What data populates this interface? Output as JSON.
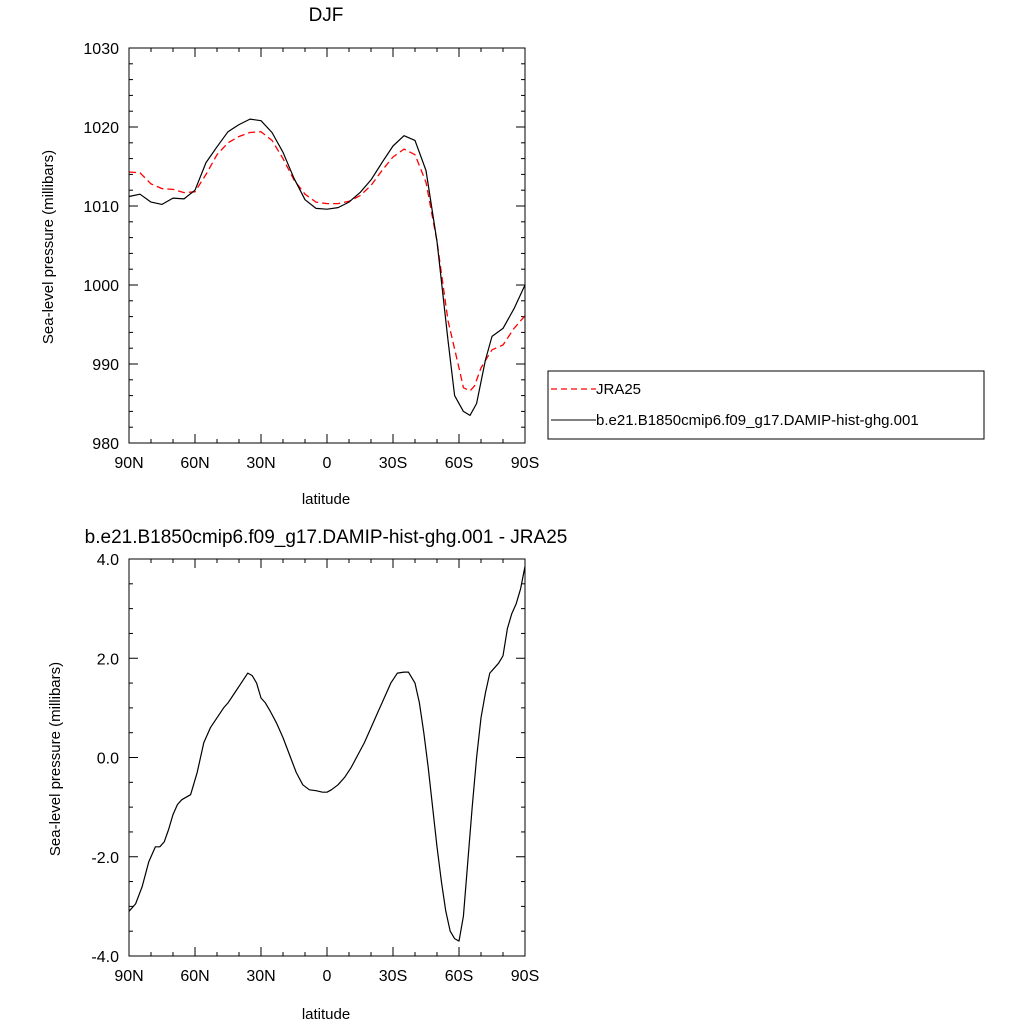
{
  "charts": [
    {
      "title": "DJF",
      "xlabel": "latitude",
      "ylabel": "Sea-level pressure (millibars)",
      "x_tick_labels": [
        "90N",
        "60N",
        "30N",
        "0",
        "30S",
        "60S",
        "90S"
      ],
      "y_tick_labels": [
        "980",
        "990",
        "1000",
        "1010",
        "1020",
        "1030"
      ],
      "legend": [
        "JRA25",
        "b.e21.B1850cmip6.f09_g17.DAMIP-hist-ghg.001"
      ]
    },
    {
      "title": "b.e21.B1850cmip6.f09_g17.DAMIP-hist-ghg.001 - JRA25",
      "xlabel": "latitude",
      "ylabel": "Sea-level pressure (millibars)",
      "x_tick_labels": [
        "90N",
        "60N",
        "30N",
        "0",
        "30S",
        "60S",
        "90S"
      ],
      "y_tick_labels": [
        "-4.0",
        "-2.0",
        "0.0",
        "2.0",
        "4.0"
      ]
    }
  ],
  "chart_data": [
    {
      "type": "line",
      "title": "DJF",
      "xlabel": "latitude",
      "ylabel": "Sea-level pressure (millibars)",
      "x_ticks": [
        90,
        60,
        30,
        0,
        -30,
        -60,
        -90
      ],
      "xlim": [
        90,
        -90
      ],
      "ylim": [
        980,
        1030
      ],
      "y_ticks": [
        980,
        990,
        1000,
        1010,
        1020,
        1030
      ],
      "grid": false,
      "legend_position": "right",
      "series": [
        {
          "name": "JRA25",
          "color": "#ff0000",
          "dash": "dashed",
          "x": [
            90,
            85,
            80,
            75,
            70,
            65,
            60,
            55,
            50,
            45,
            40,
            35,
            30,
            25,
            20,
            15,
            10,
            5,
            0,
            -5,
            -10,
            -15,
            -20,
            -25,
            -30,
            -35,
            -40,
            -45,
            -50,
            -55,
            -60,
            -62,
            -65,
            -67,
            -70,
            -75,
            -80,
            -85,
            -90
          ],
          "values": [
            1014.3,
            1014.2,
            1012.8,
            1012.2,
            1012.1,
            1011.7,
            1011.8,
            1014,
            1016.5,
            1018,
            1018.8,
            1019.3,
            1019.4,
            1018.3,
            1016,
            1013.3,
            1011.5,
            1010.5,
            1010.3,
            1010.3,
            1010.6,
            1011.3,
            1012.6,
            1014.5,
            1016.2,
            1017.2,
            1016.5,
            1013,
            1005.5,
            995.5,
            989.5,
            987,
            986.6,
            987.2,
            989.5,
            991.8,
            992.4,
            994.5,
            996.1
          ]
        },
        {
          "name": "b.e21.B1850cmip6.f09_g17.DAMIP-hist-ghg.001",
          "color": "#000000",
          "dash": "solid",
          "x": [
            90,
            85,
            80,
            75,
            70,
            65,
            60,
            55,
            50,
            45,
            40,
            35,
            30,
            25,
            20,
            15,
            10,
            5,
            0,
            -5,
            -10,
            -15,
            -20,
            -25,
            -30,
            -35,
            -40,
            -45,
            -50,
            -55,
            -58,
            -62,
            -65,
            -68,
            -72,
            -75,
            -80,
            -85,
            -90
          ],
          "values": [
            1011.2,
            1011.5,
            1010.5,
            1010.2,
            1011,
            1010.9,
            1012,
            1015.5,
            1017.5,
            1019.4,
            1020.3,
            1021,
            1020.8,
            1019.3,
            1016.8,
            1013.5,
            1010.8,
            1009.7,
            1009.6,
            1009.8,
            1010.5,
            1011.7,
            1013.3,
            1015.5,
            1017.6,
            1018.9,
            1018.3,
            1014.5,
            1005.5,
            993,
            986,
            984,
            983.5,
            985,
            990.5,
            993.5,
            994.5,
            997,
            1000
          ]
        }
      ]
    },
    {
      "type": "line",
      "title": "b.e21.B1850cmip6.f09_g17.DAMIP-hist-ghg.001 - JRA25",
      "xlabel": "latitude",
      "ylabel": "Sea-level pressure (millibars)",
      "x_ticks": [
        90,
        60,
        30,
        0,
        -30,
        -60,
        -90
      ],
      "xlim": [
        90,
        -90
      ],
      "ylim": [
        -4,
        4
      ],
      "y_ticks": [
        -4,
        -2,
        0,
        2,
        4
      ],
      "grid": false,
      "series": [
        {
          "color": "#000000",
          "dash": "solid",
          "x": [
            90,
            87,
            84,
            81,
            78,
            76,
            74,
            72,
            70,
            68,
            66,
            64,
            62,
            59,
            56,
            53,
            50,
            47,
            45,
            42,
            39,
            36,
            34,
            32,
            30,
            28,
            26,
            23,
            20,
            17,
            14,
            11,
            8,
            5,
            2,
            0,
            -2,
            -5,
            -8,
            -11,
            -14,
            -17,
            -20,
            -23,
            -26,
            -29,
            -32,
            -35,
            -37,
            -40,
            -42,
            -44,
            -46,
            -48,
            -50,
            -52,
            -54,
            -56,
            -58,
            -60,
            -62,
            -64,
            -66,
            -68,
            -70,
            -72,
            -74,
            -76,
            -78,
            -80,
            -82,
            -84,
            -86,
            -88,
            -90
          ],
          "values": [
            -3.1,
            -2.95,
            -2.6,
            -2.1,
            -1.8,
            -1.8,
            -1.7,
            -1.45,
            -1.15,
            -0.95,
            -0.85,
            -0.8,
            -0.75,
            -0.3,
            0.3,
            0.6,
            0.8,
            1.0,
            1.1,
            1.3,
            1.5,
            1.7,
            1.65,
            1.5,
            1.2,
            1.1,
            0.95,
            0.7,
            0.4,
            0.05,
            -0.3,
            -0.55,
            -0.65,
            -0.67,
            -0.7,
            -0.7,
            -0.65,
            -0.55,
            -0.4,
            -0.2,
            0.05,
            0.3,
            0.6,
            0.9,
            1.2,
            1.5,
            1.7,
            1.72,
            1.72,
            1.5,
            1.1,
            0.5,
            -0.2,
            -1.0,
            -1.8,
            -2.5,
            -3.1,
            -3.5,
            -3.65,
            -3.7,
            -3.2,
            -2.1,
            -1.0,
            0.0,
            0.8,
            1.3,
            1.7,
            1.8,
            1.9,
            2.05,
            2.6,
            2.9,
            3.1,
            3.4,
            3.85
          ]
        }
      ]
    }
  ]
}
